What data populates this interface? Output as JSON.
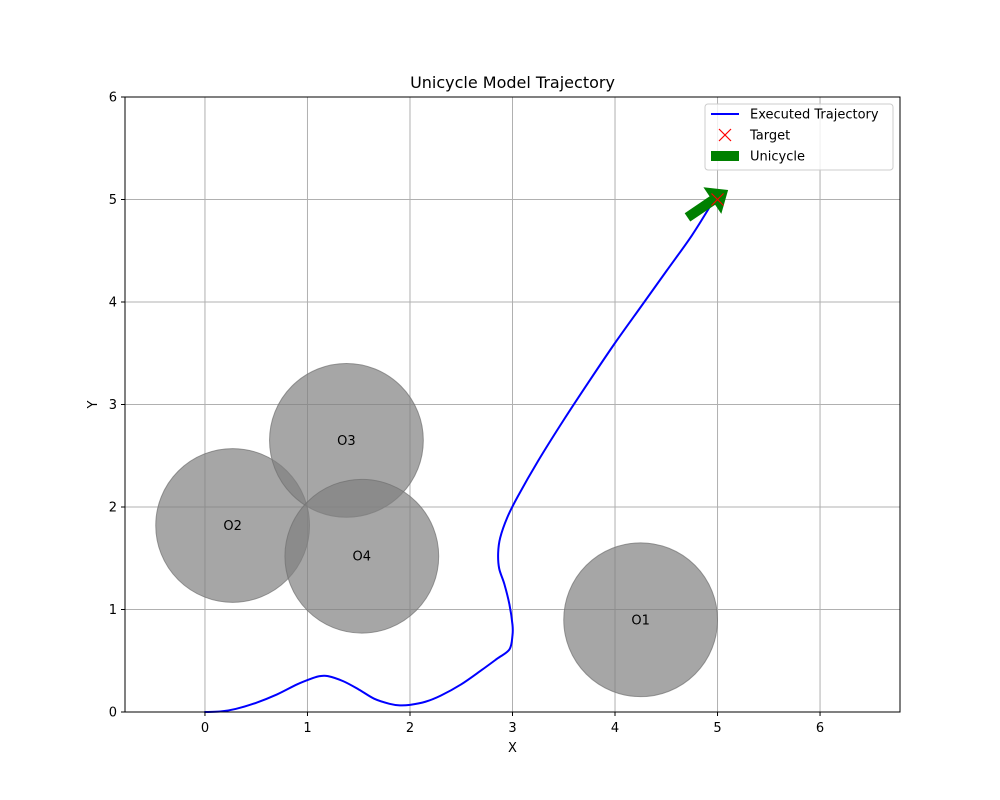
{
  "chart_data": {
    "type": "line",
    "title": "Unicycle Model Trajectory",
    "xlabel": "X",
    "ylabel": "Y",
    "xlim": [
      -0.78,
      6.78
    ],
    "ylim": [
      0,
      6
    ],
    "xticks": [
      0,
      1,
      2,
      3,
      4,
      5,
      6
    ],
    "yticks": [
      0,
      1,
      2,
      3,
      4,
      5,
      6
    ],
    "grid": true,
    "legend_position": "top-right",
    "legend": [
      {
        "label": "Executed Trajectory",
        "kind": "line",
        "color": "#0000ff"
      },
      {
        "label": "Target",
        "kind": "marker-x",
        "color": "#ff0000"
      },
      {
        "label": "Unicycle",
        "kind": "patch",
        "color": "#008000"
      }
    ],
    "trajectory": {
      "name": "Executed Trajectory",
      "color": "#0000ff",
      "x": [
        0.0,
        0.15,
        0.3,
        0.5,
        0.7,
        0.9,
        1.05,
        1.12,
        1.2,
        1.35,
        1.5,
        1.65,
        1.8,
        1.9,
        2.0,
        2.15,
        2.3,
        2.5,
        2.7,
        2.85,
        2.97,
        3.0,
        3.0,
        2.97,
        2.92,
        2.87,
        2.86,
        2.88,
        2.95,
        3.05,
        3.25,
        3.5,
        3.75,
        4.0,
        4.25,
        4.5,
        4.75,
        4.95
      ],
      "y": [
        0.0,
        0.005,
        0.03,
        0.09,
        0.17,
        0.27,
        0.33,
        0.35,
        0.35,
        0.3,
        0.22,
        0.13,
        0.08,
        0.065,
        0.07,
        0.1,
        0.16,
        0.27,
        0.41,
        0.52,
        0.61,
        0.75,
        0.85,
        1.05,
        1.25,
        1.4,
        1.55,
        1.7,
        1.9,
        2.1,
        2.45,
        2.85,
        3.23,
        3.6,
        3.95,
        4.3,
        4.65,
        4.97
      ]
    },
    "target": {
      "x": 5.0,
      "y": 5.0,
      "color": "#ff0000"
    },
    "unicycle": {
      "x": 4.93,
      "y": 4.97,
      "heading_deg": 34,
      "color": "#008000"
    },
    "obstacles": [
      {
        "label": "O1",
        "x": 4.25,
        "y": 0.9,
        "r": 0.75
      },
      {
        "label": "O2",
        "x": 0.27,
        "y": 1.82,
        "r": 0.75
      },
      {
        "label": "O3",
        "x": 1.38,
        "y": 2.65,
        "r": 0.75
      },
      {
        "label": "O4",
        "x": 1.53,
        "y": 1.52,
        "r": 0.75
      }
    ],
    "obstacle_color": "#808080"
  }
}
